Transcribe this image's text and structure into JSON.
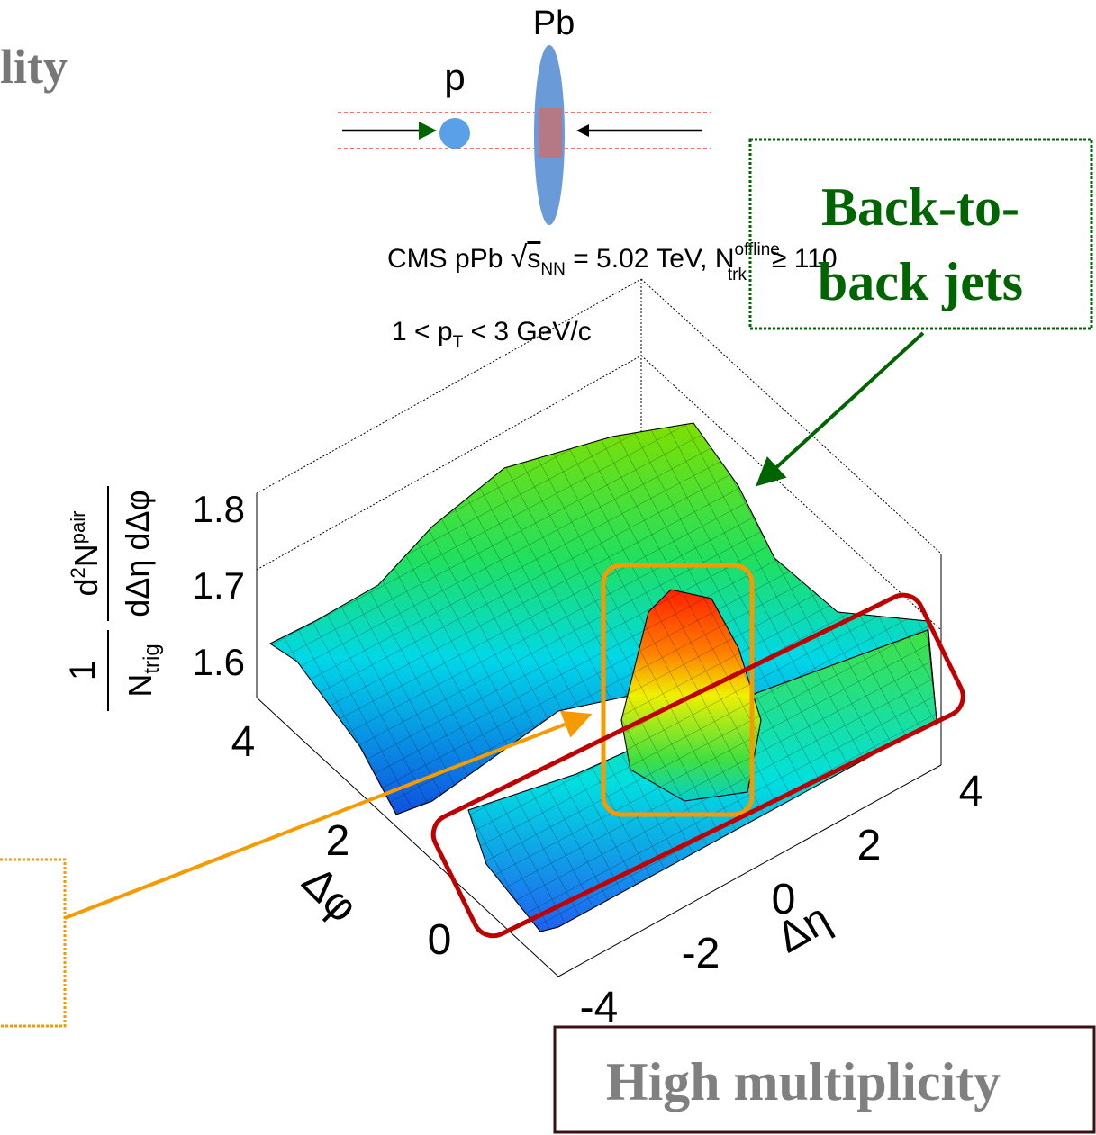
{
  "header": {
    "title": "lity"
  },
  "collision": {
    "nucleus": "Pb",
    "proton": "p"
  },
  "plot": {
    "caption": {
      "prefix": "CMS pPb",
      "sqrt_symbol": "√",
      "s": "s",
      "s_sub": "NN",
      "middle": "= 5.02 TeV, N",
      "n_sup": "offline",
      "n_sub": "trk",
      "suffix": "≥ 110"
    },
    "cut": {
      "prefix": "1 < p",
      "sub": "T",
      "suffix": "< 3 GeV/c"
    },
    "z_label": {
      "num1": "1",
      "den1": "N",
      "den1_sub": "trig",
      "num2": "d",
      "num2_sup": "2",
      "num2_mid": "N",
      "num2_sup2": "pair",
      "den2": "dΔη dΔφ"
    },
    "z_ticks": [
      "1.8",
      "1.7",
      "1.6"
    ],
    "phi_label": "Δφ",
    "phi_ticks": [
      "4",
      "2",
      "0"
    ],
    "eta_label": "Δη",
    "eta_ticks": [
      "4",
      "2",
      "0",
      "-2",
      "-4"
    ]
  },
  "annotations": {
    "back_to_back": [
      "Back-to-",
      "back jets"
    ],
    "high_multiplicity": "High multiplicity"
  }
}
